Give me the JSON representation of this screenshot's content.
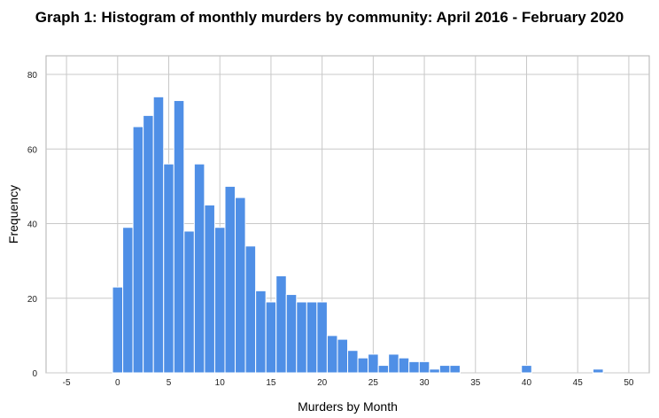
{
  "chart_data": {
    "type": "bar",
    "title": "Graph 1: Histogram of monthly murders by community: April 2016 - February 2020",
    "xlabel": "Murders by Month",
    "ylabel": "Frequency",
    "xlim": [
      -7,
      52
    ],
    "ylim": [
      0,
      85
    ],
    "xticks": [
      -5,
      0,
      5,
      10,
      15,
      20,
      25,
      30,
      35,
      40,
      45,
      50
    ],
    "yticks": [
      0,
      20,
      40,
      60,
      80
    ],
    "grid": true,
    "bin_width": 1,
    "bar_color": "#4F8FE6",
    "x": [
      0,
      1,
      2,
      3,
      4,
      5,
      6,
      7,
      8,
      9,
      10,
      11,
      12,
      13,
      14,
      15,
      16,
      17,
      18,
      19,
      20,
      21,
      22,
      23,
      24,
      25,
      26,
      27,
      28,
      29,
      30,
      31,
      32,
      33,
      34,
      35,
      36,
      37,
      38,
      39,
      40,
      41,
      42,
      43,
      44,
      45,
      46,
      47
    ],
    "values": [
      23,
      39,
      66,
      69,
      74,
      56,
      73,
      38,
      56,
      45,
      39,
      50,
      47,
      34,
      22,
      19,
      26,
      21,
      19,
      19,
      19,
      10,
      9,
      6,
      4,
      5,
      2,
      5,
      4,
      3,
      3,
      1,
      2,
      2,
      0,
      0,
      0,
      0,
      0,
      0,
      2,
      0,
      0,
      0,
      0,
      0,
      0,
      1
    ]
  }
}
